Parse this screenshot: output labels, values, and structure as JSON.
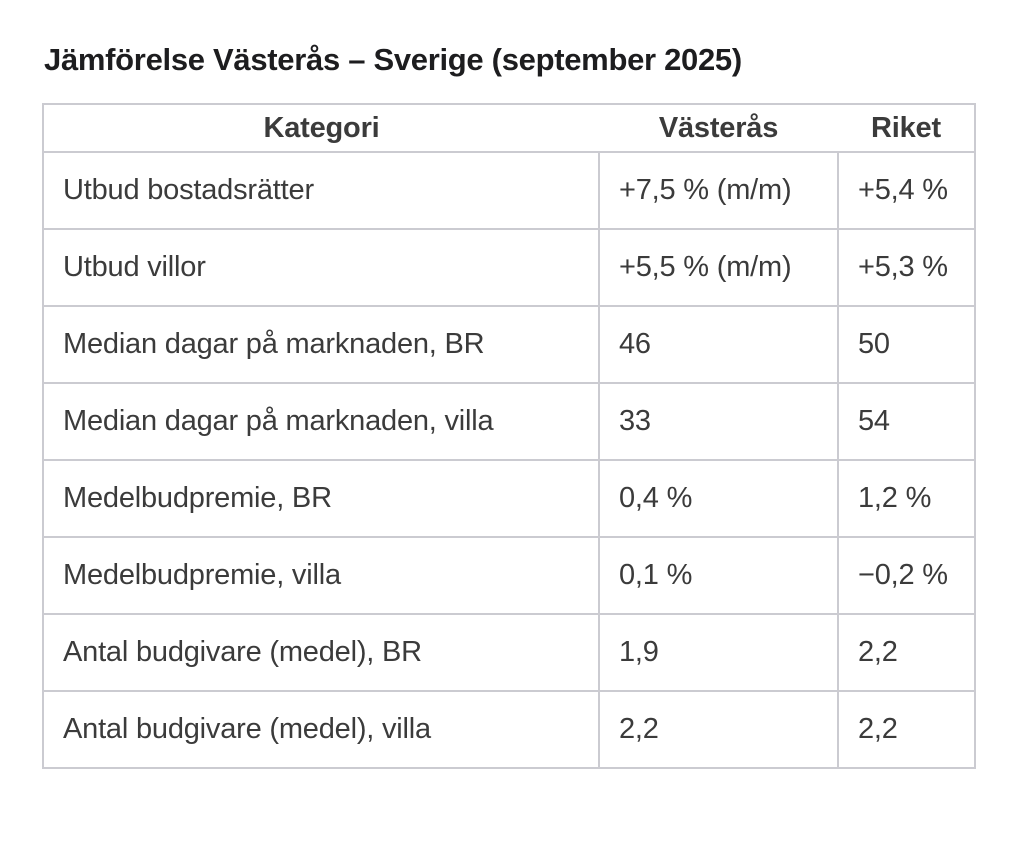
{
  "title": "Jämförelse Västerås – Sverige (september 2025)",
  "colors": {
    "title_text": "#1d1d1f",
    "table_text": "#3b3b3b",
    "border": "#cbcbd1",
    "background": "#ffffff"
  },
  "chart_data": {
    "type": "table",
    "title": "Jämförelse Västerås – Sverige (september 2025)",
    "columns": [
      "Kategori",
      "Västerås",
      "Riket"
    ],
    "rows": [
      [
        "Utbud bostadsrätter",
        "+7,5 % (m/m)",
        "+5,4 %"
      ],
      [
        "Utbud villor",
        "+5,5 % (m/m)",
        "+5,3 %"
      ],
      [
        "Median dagar på marknaden, BR",
        "46",
        "50"
      ],
      [
        "Median dagar på marknaden, villa",
        "33",
        "54"
      ],
      [
        "Medelbudpremie, BR",
        "0,4 %",
        "1,2 %"
      ],
      [
        "Medelbudpremie, villa",
        "0,1 %",
        "−0,2 %"
      ],
      [
        "Antal budgivare (medel), BR",
        "1,9",
        "2,2"
      ],
      [
        "Antal budgivare (medel), villa",
        "2,2",
        "2,2"
      ]
    ]
  }
}
